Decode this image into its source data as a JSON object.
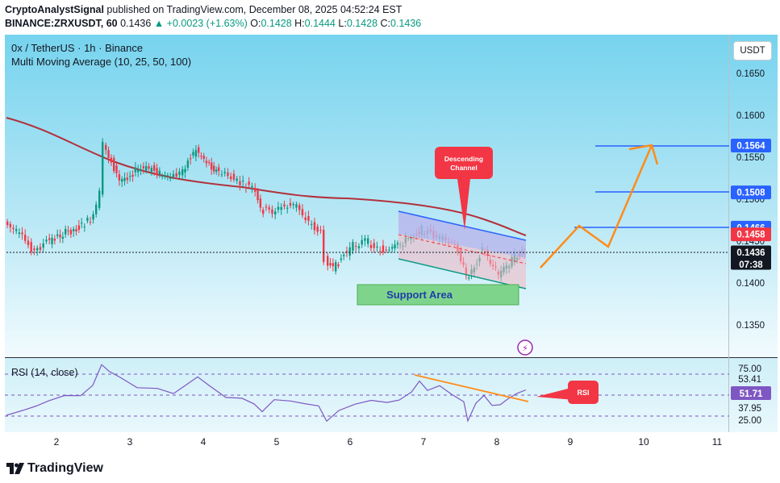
{
  "header": {
    "author": "CryptoAnalystSignal",
    "published": "published on TradingView.com, December 08, 2025 04:52:24 EST",
    "symbol_line": "BINANCE:ZRXUSDT, 60",
    "price": "0.1436",
    "change": "+0.0023 (+1.63%)",
    "o_label": "O:",
    "o_val": "0.1428",
    "h_label": "H:",
    "h_val": "0.1444",
    "l_label": "L:",
    "l_val": "0.1428",
    "c_label": "C:",
    "c_val": "0.1436"
  },
  "chart": {
    "title": "0x / TetherUS · 1h · Binance",
    "indicator": "Multi Moving Average (10, 25, 50, 100)",
    "currency_button": "USDT",
    "price_axis": [
      "0.1650",
      "0.1600",
      "0.1550",
      "0.1500",
      "0.1450",
      "0.1400",
      "0.1350"
    ],
    "levels": [
      {
        "value": "0.1564",
        "color": "#2962ff"
      },
      {
        "value": "0.1508",
        "color": "#2962ff"
      },
      {
        "value": "0.1466",
        "color": "#2962ff"
      },
      {
        "value": "0.1458",
        "color": "#f23645"
      },
      {
        "value": "0.1436",
        "color": "#131722"
      }
    ],
    "countdown": "07:38",
    "annotation_channel": "Descending Channel",
    "annotation_support": "Support Area",
    "annotation_rsi": "RSI",
    "time_axis": [
      "2",
      "3",
      "4",
      "5",
      "6",
      "7",
      "8",
      "9",
      "10",
      "11"
    ]
  },
  "rsi": {
    "title": "RSI (14, close)",
    "axis": [
      "75.00",
      "53.41",
      "37.95",
      "25.00"
    ],
    "value": "51.71"
  },
  "footer": {
    "brand": "TradingView"
  },
  "colors": {
    "bg_top": "#7fd6ef",
    "bg_bottom": "#e6f7fc",
    "bull": "#089981",
    "bear": "#f23645",
    "ma": "#b2313b",
    "arrow": "#ff8c1a",
    "channel_top": "#2962ff",
    "channel_bottom": "#089981"
  }
}
